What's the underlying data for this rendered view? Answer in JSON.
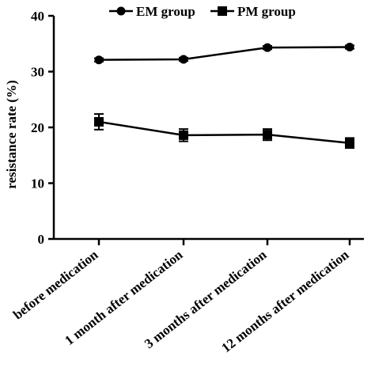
{
  "chart_data": {
    "type": "line",
    "title": "",
    "xlabel": "",
    "ylabel": "resistance rate (%)",
    "ylim": [
      0,
      40
    ],
    "yticks": [
      "0",
      "10",
      "20",
      "30",
      "40"
    ],
    "categories": [
      "before medication",
      "1 month after medication",
      "3 months after medication",
      "12 months after medication"
    ],
    "series": [
      {
        "name": "EM group",
        "marker": "circle",
        "values": [
          32.1,
          32.2,
          34.3,
          34.4
        ],
        "errors": [
          0.3,
          0.3,
          0.3,
          0.3
        ]
      },
      {
        "name": "PM group",
        "marker": "square",
        "values": [
          21.0,
          18.6,
          18.7,
          17.2
        ],
        "errors": [
          1.4,
          1.1,
          1.0,
          0.9
        ]
      }
    ],
    "legend_position": "top",
    "grid": false,
    "colors": {
      "line": "#000000",
      "background": "#ffffff"
    }
  }
}
